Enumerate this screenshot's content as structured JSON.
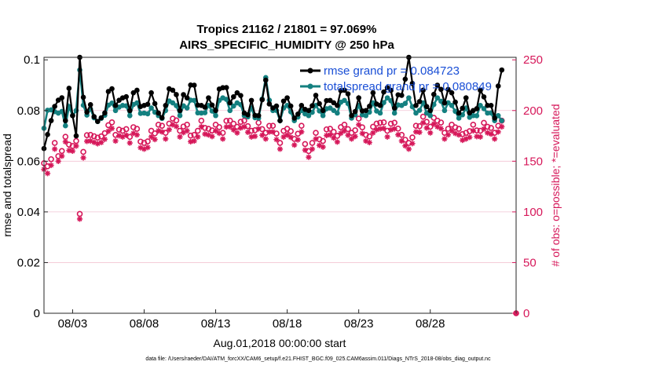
{
  "chart_data": {
    "type": "line",
    "title_line1": "Tropics 21162 / 21801 = 97.069%",
    "title_line2": "AIRS_SPECIFIC_HUMIDITY @ 250 hPa",
    "xlabel": "Aug.01,2018 00:00:00 start",
    "ylabel_left": "rmse and totalspread",
    "ylabel_right": "# of obs: o=possible; *=evaluated",
    "xlim": [
      0,
      33
    ],
    "ylim_left": [
      0,
      0.101
    ],
    "ylim_right": [
      0,
      252.5
    ],
    "x_ticks": [
      2,
      7,
      12,
      17,
      22,
      27
    ],
    "x_tick_labels": [
      "08/03",
      "08/08",
      "08/13",
      "08/18",
      "08/23",
      "08/28"
    ],
    "y_left_ticks": [
      0,
      0.02,
      0.04,
      0.06,
      0.08,
      0.1
    ],
    "y_left_tick_labels": [
      "0",
      "0.02",
      "0.04",
      "0.06",
      "0.08",
      "0.1"
    ],
    "y_right_ticks": [
      0,
      50,
      100,
      150,
      200,
      250
    ],
    "y_right_tick_labels": [
      "0",
      "50",
      "100",
      "150",
      "200",
      "250"
    ],
    "legend": [
      {
        "label": "rmse grand pr = 0.084723",
        "color": "#000000"
      },
      {
        "label": "totalspread grand pr = 0.080849",
        "color": "#148080"
      }
    ],
    "colors": {
      "rmse": "#000000",
      "spread": "#148080",
      "obs": "#d6185a"
    },
    "rmse_keypoints": [
      [
        0,
        0.065
      ],
      [
        0.3,
        0.074
      ],
      [
        0.6,
        0.082
      ],
      [
        0.9,
        0.089
      ],
      [
        1.2,
        0.084
      ],
      [
        1.5,
        0.076
      ],
      [
        1.8,
        0.088
      ],
      [
        2.0,
        0.078
      ],
      [
        2.25,
        0.07
      ],
      [
        2.5,
        0.101
      ],
      [
        2.8,
        0.08
      ],
      [
        3.2,
        0.086
      ],
      [
        3.7,
        0.078
      ],
      [
        4.2,
        0.08
      ],
      [
        4.6,
        0.093
      ],
      [
        5.0,
        0.082
      ],
      [
        5.5,
        0.085
      ],
      [
        6.0,
        0.08
      ],
      [
        6.5,
        0.088
      ],
      [
        7.0,
        0.082
      ],
      [
        7.5,
        0.087
      ],
      [
        8.0,
        0.079
      ],
      [
        8.5,
        0.082
      ],
      [
        9.0,
        0.088
      ],
      [
        9.5,
        0.08
      ],
      [
        10.0,
        0.085
      ],
      [
        10.5,
        0.09
      ],
      [
        11.0,
        0.082
      ],
      [
        11.5,
        0.085
      ],
      [
        12.0,
        0.08
      ],
      [
        12.5,
        0.089
      ],
      [
        13.0,
        0.083
      ],
      [
        13.5,
        0.087
      ],
      [
        14.0,
        0.079
      ],
      [
        14.5,
        0.084
      ],
      [
        15.0,
        0.078
      ],
      [
        15.5,
        0.092
      ],
      [
        16.0,
        0.081
      ],
      [
        16.5,
        0.076
      ],
      [
        17.0,
        0.085
      ],
      [
        17.5,
        0.077
      ],
      [
        18.0,
        0.082
      ],
      [
        18.5,
        0.08
      ],
      [
        19.0,
        0.086
      ],
      [
        19.5,
        0.08
      ],
      [
        20.0,
        0.084
      ],
      [
        20.5,
        0.082
      ],
      [
        21.0,
        0.088
      ],
      [
        21.5,
        0.078
      ],
      [
        22.0,
        0.085
      ],
      [
        22.5,
        0.08
      ],
      [
        23.0,
        0.087
      ],
      [
        23.5,
        0.082
      ],
      [
        24.0,
        0.089
      ],
      [
        24.5,
        0.081
      ],
      [
        25.0,
        0.086
      ],
      [
        25.5,
        0.101
      ],
      [
        26.0,
        0.082
      ],
      [
        26.5,
        0.088
      ],
      [
        27.0,
        0.08
      ],
      [
        27.5,
        0.09
      ],
      [
        28.0,
        0.083
      ],
      [
        28.5,
        0.087
      ],
      [
        29.0,
        0.079
      ],
      [
        29.5,
        0.085
      ],
      [
        30.0,
        0.08
      ],
      [
        30.5,
        0.088
      ],
      [
        31.0,
        0.082
      ],
      [
        31.5,
        0.077
      ],
      [
        32.0,
        0.096
      ]
    ],
    "spread_keypoints": [
      [
        0,
        0.073
      ],
      [
        0.3,
        0.083
      ],
      [
        0.6,
        0.082
      ],
      [
        0.9,
        0.082
      ],
      [
        1.2,
        0.079
      ],
      [
        1.5,
        0.074
      ],
      [
        1.8,
        0.081
      ],
      [
        2.0,
        0.078
      ],
      [
        2.25,
        0.08
      ],
      [
        2.5,
        0.096
      ],
      [
        2.8,
        0.078
      ],
      [
        3.2,
        0.083
      ],
      [
        3.7,
        0.077
      ],
      [
        4.2,
        0.079
      ],
      [
        4.6,
        0.085
      ],
      [
        5.0,
        0.08
      ],
      [
        5.5,
        0.082
      ],
      [
        6.0,
        0.078
      ],
      [
        6.5,
        0.083
      ],
      [
        7.0,
        0.079
      ],
      [
        7.5,
        0.081
      ],
      [
        8.0,
        0.078
      ],
      [
        8.5,
        0.08
      ],
      [
        9.0,
        0.083
      ],
      [
        9.5,
        0.078
      ],
      [
        10.0,
        0.081
      ],
      [
        10.5,
        0.084
      ],
      [
        11.0,
        0.079
      ],
      [
        11.5,
        0.082
      ],
      [
        12.0,
        0.078
      ],
      [
        12.5,
        0.085
      ],
      [
        13.0,
        0.08
      ],
      [
        13.5,
        0.083
      ],
      [
        14.0,
        0.078
      ],
      [
        14.5,
        0.081
      ],
      [
        15.0,
        0.077
      ],
      [
        15.5,
        0.093
      ],
      [
        16.0,
        0.08
      ],
      [
        16.5,
        0.076
      ],
      [
        17.0,
        0.082
      ],
      [
        17.5,
        0.076
      ],
      [
        18.0,
        0.08
      ],
      [
        18.5,
        0.078
      ],
      [
        19.0,
        0.082
      ],
      [
        19.5,
        0.078
      ],
      [
        20.0,
        0.081
      ],
      [
        20.5,
        0.079
      ],
      [
        21.0,
        0.084
      ],
      [
        21.5,
        0.077
      ],
      [
        22.0,
        0.082
      ],
      [
        22.5,
        0.078
      ],
      [
        23.0,
        0.083
      ],
      [
        23.5,
        0.079
      ],
      [
        24.0,
        0.085
      ],
      [
        24.5,
        0.079
      ],
      [
        25.0,
        0.082
      ],
      [
        25.5,
        0.085
      ],
      [
        26.0,
        0.079
      ],
      [
        26.5,
        0.083
      ],
      [
        27.0,
        0.078
      ],
      [
        27.5,
        0.085
      ],
      [
        28.0,
        0.08
      ],
      [
        28.5,
        0.082
      ],
      [
        29.0,
        0.077
      ],
      [
        29.5,
        0.081
      ],
      [
        30.0,
        0.078
      ],
      [
        30.5,
        0.082
      ],
      [
        31.0,
        0.079
      ],
      [
        31.5,
        0.076
      ],
      [
        32.0,
        0.076
      ]
    ],
    "obs_possible_keypoints": [
      [
        0,
        148
      ],
      [
        0.25,
        145
      ],
      [
        0.5,
        152
      ],
      [
        0.75,
        168
      ],
      [
        1.0,
        155
      ],
      [
        1.3,
        160
      ],
      [
        1.6,
        175
      ],
      [
        1.8,
        162
      ],
      [
        2.0,
        165
      ],
      [
        2.25,
        170
      ],
      [
        2.5,
        98
      ],
      [
        2.8,
        178
      ],
      [
        3.2,
        182
      ],
      [
        3.7,
        176
      ],
      [
        4.2,
        180
      ],
      [
        4.6,
        188
      ],
      [
        5.0,
        176
      ],
      [
        5.5,
        180
      ],
      [
        6.0,
        174
      ],
      [
        6.5,
        182
      ],
      [
        7.0,
        168
      ],
      [
        7.5,
        180
      ],
      [
        8.0,
        186
      ],
      [
        8.5,
        178
      ],
      [
        9.0,
        192
      ],
      [
        9.5,
        180
      ],
      [
        10.0,
        186
      ],
      [
        10.5,
        176
      ],
      [
        11.0,
        190
      ],
      [
        11.5,
        182
      ],
      [
        12.0,
        186
      ],
      [
        12.5,
        178
      ],
      [
        13.0,
        190
      ],
      [
        13.5,
        184
      ],
      [
        14.0,
        190
      ],
      [
        14.5,
        180
      ],
      [
        15.0,
        188
      ],
      [
        15.5,
        178
      ],
      [
        16.0,
        185
      ],
      [
        16.5,
        168
      ],
      [
        17.0,
        182
      ],
      [
        17.5,
        172
      ],
      [
        18.0,
        185
      ],
      [
        18.5,
        160
      ],
      [
        19.0,
        178
      ],
      [
        19.5,
        170
      ],
      [
        20.0,
        182
      ],
      [
        20.5,
        175
      ],
      [
        21.0,
        186
      ],
      [
        21.5,
        178
      ],
      [
        22.0,
        192
      ],
      [
        22.5,
        176
      ],
      [
        23.0,
        184
      ],
      [
        23.5,
        188
      ],
      [
        24.0,
        180
      ],
      [
        24.5,
        188
      ],
      [
        25.0,
        176
      ],
      [
        25.5,
        168
      ],
      [
        26.0,
        185
      ],
      [
        26.5,
        194
      ],
      [
        27.0,
        184
      ],
      [
        27.5,
        190
      ],
      [
        28.0,
        178
      ],
      [
        28.5,
        186
      ],
      [
        29.0,
        182
      ],
      [
        29.5,
        178
      ],
      [
        30.0,
        186
      ],
      [
        30.5,
        180
      ],
      [
        31.0,
        184
      ],
      [
        31.5,
        178
      ],
      [
        32.0,
        190
      ],
      [
        33.0,
        0
      ]
    ],
    "obs_evaluated_keypoints": [
      [
        0,
        142
      ],
      [
        0.25,
        138
      ],
      [
        0.5,
        146
      ],
      [
        0.75,
        162
      ],
      [
        1.0,
        150
      ],
      [
        1.3,
        155
      ],
      [
        1.6,
        170
      ],
      [
        1.8,
        156
      ],
      [
        2.0,
        160
      ],
      [
        2.25,
        165
      ],
      [
        2.5,
        93
      ],
      [
        2.8,
        172
      ],
      [
        3.2,
        176
      ],
      [
        3.7,
        170
      ],
      [
        4.2,
        174
      ],
      [
        4.6,
        182
      ],
      [
        5.0,
        170
      ],
      [
        5.5,
        174
      ],
      [
        6.0,
        168
      ],
      [
        6.5,
        176
      ],
      [
        7.0,
        162
      ],
      [
        7.5,
        174
      ],
      [
        8.0,
        180
      ],
      [
        8.5,
        172
      ],
      [
        9.0,
        186
      ],
      [
        9.5,
        174
      ],
      [
        10.0,
        180
      ],
      [
        10.5,
        170
      ],
      [
        11.0,
        184
      ],
      [
        11.5,
        176
      ],
      [
        12.0,
        180
      ],
      [
        12.5,
        172
      ],
      [
        13.0,
        184
      ],
      [
        13.5,
        178
      ],
      [
        14.0,
        184
      ],
      [
        14.5,
        174
      ],
      [
        15.0,
        182
      ],
      [
        15.5,
        172
      ],
      [
        16.0,
        179
      ],
      [
        16.5,
        162
      ],
      [
        17.0,
        176
      ],
      [
        17.5,
        166
      ],
      [
        18.0,
        179
      ],
      [
        18.5,
        154
      ],
      [
        19.0,
        172
      ],
      [
        19.5,
        164
      ],
      [
        20.0,
        176
      ],
      [
        20.5,
        169
      ],
      [
        21.0,
        180
      ],
      [
        21.5,
        172
      ],
      [
        22.0,
        186
      ],
      [
        22.5,
        170
      ],
      [
        23.0,
        178
      ],
      [
        23.5,
        182
      ],
      [
        24.0,
        174
      ],
      [
        24.5,
        182
      ],
      [
        25.0,
        170
      ],
      [
        25.5,
        162
      ],
      [
        26.0,
        179
      ],
      [
        26.5,
        188
      ],
      [
        27.0,
        178
      ],
      [
        27.5,
        184
      ],
      [
        28.0,
        172
      ],
      [
        28.5,
        180
      ],
      [
        29.0,
        176
      ],
      [
        29.5,
        172
      ],
      [
        30.0,
        180
      ],
      [
        30.5,
        174
      ],
      [
        31.0,
        178
      ],
      [
        31.5,
        172
      ],
      [
        32.0,
        184
      ],
      [
        33.0,
        0
      ]
    ]
  },
  "footer_text": "data file: /Users/raeder/DAI/ATM_forcXX/CAM6_setup/f.e21.FHIST_BGC.f09_025.CAM6assim.011/Diags_NTrS_2018-08/obs_diag_output.nc"
}
